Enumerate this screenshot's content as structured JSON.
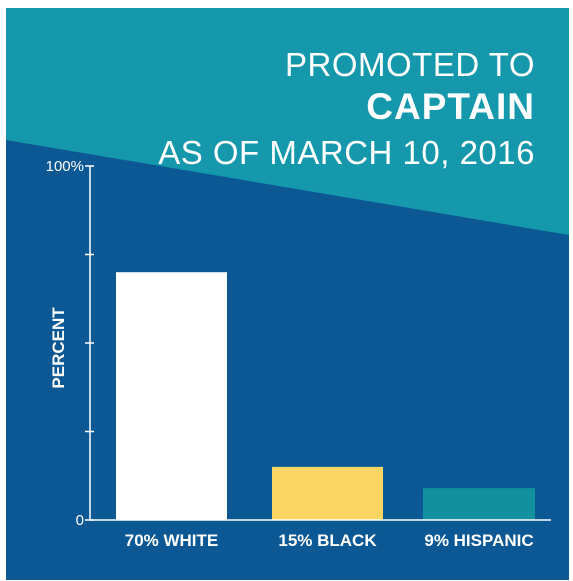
{
  "header": {
    "line1": "PROMOTED TO",
    "line2": "CAPTAIN",
    "line3": "AS OF MARCH 10, 2016"
  },
  "colors": {
    "teal_bg": "#1598ab",
    "navy_bg": "#0b5894",
    "bar_white": "#ffffff",
    "bar_black": "#fcd664",
    "bar_hispanic": "#12909d",
    "axis": "#ffffff"
  },
  "chart_data": {
    "type": "bar",
    "categories": [
      "70% WHITE",
      "15% BLACK",
      "9% HISPANIC"
    ],
    "values": [
      70,
      15,
      9
    ],
    "bar_colors": [
      "#ffffff",
      "#fcd664",
      "#12909d"
    ],
    "ylabel": "PERCENT",
    "ylim": [
      0,
      100
    ],
    "yticks": [
      0,
      25,
      50,
      75,
      100
    ],
    "ytick_labels": [
      "0",
      "",
      "",
      "",
      "100%"
    ],
    "grid": false,
    "legend": "none"
  }
}
